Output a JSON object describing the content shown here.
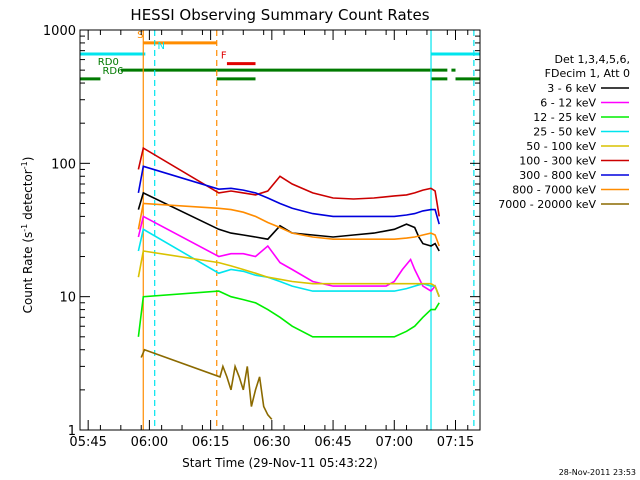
{
  "chart_data": {
    "type": "line",
    "title": "HESSI Observing Summary Count Rates",
    "xlabel": "Start Time (29-Nov-11 05:43:22)",
    "ylabel": "Count Rate (s",
    "ylabel_sup1": "-1",
    "ylabel_mid": " detector",
    "ylabel_sup2": "-1",
    "ylabel_end": ")",
    "yscale": "log",
    "ylim": [
      1,
      1000
    ],
    "y_ticks": [
      {
        "value": 1,
        "label": "1"
      },
      {
        "value": 10,
        "label": "10"
      },
      {
        "value": 100,
        "label": "100"
      },
      {
        "value": 1000,
        "label": "1000"
      }
    ],
    "xlim": [
      -2,
      96
    ],
    "x_ticks": [
      {
        "t": 0,
        "label": "05:45"
      },
      {
        "t": 15,
        "label": "06:00"
      },
      {
        "t": 30,
        "label": "06:15"
      },
      {
        "t": 45,
        "label": "06:30"
      },
      {
        "t": 60,
        "label": "06:45"
      },
      {
        "t": 75,
        "label": "07:00"
      },
      {
        "t": 90,
        "label": "07:15"
      }
    ],
    "legend_header": [
      "Det 1,3,4,5,6,",
      "FDecim 1, Att 0"
    ],
    "timestamp": "28-Nov-2011 23:53",
    "colors": {
      "axes": "#000000",
      "cyan": "#00e5ee",
      "orange": "#ff8c00",
      "red": "#e00000",
      "green": "#007a00"
    },
    "flags": [
      {
        "label": "S",
        "color": "#ff8c00",
        "level": 800,
        "segments": [
          [
            13.5,
            31.5
          ]
        ]
      },
      {
        "label": "N",
        "color": "#00e5ee",
        "level": 660,
        "segments": [
          [
            -2,
            14
          ],
          [
            84,
            96
          ]
        ]
      },
      {
        "label": "F",
        "color": "#e00000",
        "level": 560,
        "segments": [
          [
            34,
            41
          ]
        ]
      },
      {
        "label": "RD0",
        "color": "#007a00",
        "level": 500,
        "segments": [
          [
            8,
            88
          ],
          [
            89,
            90
          ]
        ]
      },
      {
        "label": "RD6",
        "color": "#007a00",
        "level": 430,
        "segments": [
          [
            -2,
            3
          ],
          [
            31.5,
            41
          ],
          [
            84,
            88
          ],
          [
            90,
            96
          ]
        ]
      }
    ],
    "vertical_lines": [
      {
        "t": 13.5,
        "color": "#ff8c00",
        "dash": false
      },
      {
        "t": 16.3,
        "color": "#00e5ee",
        "dash": true
      },
      {
        "t": 31.5,
        "color": "#ff8c00",
        "dash": true
      },
      {
        "t": 84,
        "color": "#00e5ee",
        "dash": false
      },
      {
        "t": 94.5,
        "color": "#00e5ee",
        "dash": true
      }
    ],
    "series": [
      {
        "name": "3 - 6 keV",
        "color": "#000000",
        "x": [
          12.3,
          13.5,
          32,
          35,
          38,
          41,
          44,
          47,
          50,
          55,
          60,
          65,
          70,
          75,
          78,
          80,
          81,
          82,
          84,
          85,
          86
        ],
        "y": [
          45,
          60,
          32,
          30,
          29,
          28,
          27,
          34,
          30,
          29,
          28,
          29,
          30,
          32,
          35,
          33,
          28,
          25,
          24,
          25,
          22
        ]
      },
      {
        "name": "6 - 12 keV",
        "color": "#ff00ff",
        "x": [
          12.3,
          13.5,
          32,
          35,
          38,
          41,
          44,
          47,
          50,
          55,
          60,
          65,
          70,
          73,
          75,
          77,
          79,
          80,
          82,
          84,
          85,
          86
        ],
        "y": [
          28,
          40,
          20,
          21,
          21,
          20,
          24,
          18,
          16,
          13,
          12,
          12,
          12,
          12,
          13,
          16,
          19,
          16,
          12,
          11,
          12,
          10
        ]
      },
      {
        "name": "12 - 25 keV",
        "color": "#00ee00",
        "x": [
          12.3,
          13.5,
          32,
          35,
          38,
          41,
          44,
          47,
          50,
          55,
          60,
          65,
          70,
          75,
          78,
          80,
          82,
          84,
          85,
          86
        ],
        "y": [
          5,
          10,
          11,
          10,
          9.5,
          9,
          8,
          7,
          6,
          5,
          5,
          5,
          5,
          5,
          5.5,
          6,
          7,
          8,
          8,
          9
        ]
      },
      {
        "name": "25 - 50 keV",
        "color": "#00e5ee",
        "x": [
          12.3,
          13.5,
          32,
          35,
          38,
          41,
          44,
          47,
          50,
          55,
          60,
          65,
          70,
          75,
          78,
          80,
          82,
          84,
          85,
          86
        ],
        "y": [
          22,
          32,
          15,
          16,
          15.5,
          14.5,
          14,
          13,
          12,
          11,
          11,
          11,
          11,
          11,
          11.5,
          12,
          12.5,
          12,
          12,
          10
        ]
      },
      {
        "name": "50 - 100 keV",
        "color": "#d9c200",
        "x": [
          12.3,
          13.5,
          32,
          35,
          38,
          41,
          44,
          47,
          50,
          55,
          60,
          65,
          70,
          75,
          78,
          80,
          82,
          84,
          85,
          86
        ],
        "y": [
          14,
          22,
          18,
          17,
          16,
          15,
          14,
          13.5,
          13,
          12.5,
          12.5,
          12.5,
          12.5,
          12.5,
          12.5,
          12.5,
          12.5,
          12.5,
          12,
          10
        ]
      },
      {
        "name": "100 - 300 keV",
        "color": "#cc0000",
        "x": [
          12.3,
          13.5,
          32,
          35,
          38,
          41,
          44,
          47,
          50,
          55,
          60,
          65,
          70,
          75,
          78,
          80,
          82,
          84,
          85,
          86
        ],
        "y": [
          90,
          130,
          60,
          62,
          60,
          58,
          62,
          80,
          70,
          60,
          55,
          54,
          55,
          57,
          58,
          60,
          63,
          65,
          62,
          40
        ]
      },
      {
        "name": "300 - 800 keV",
        "color": "#0000dd",
        "x": [
          12.3,
          13.5,
          32,
          35,
          38,
          41,
          44,
          47,
          50,
          55,
          60,
          65,
          70,
          75,
          78,
          80,
          82,
          84,
          85,
          86
        ],
        "y": [
          60,
          95,
          64,
          65,
          63,
          60,
          55,
          50,
          46,
          42,
          40,
          40,
          40,
          40,
          41,
          42,
          44,
          45,
          45,
          35
        ]
      },
      {
        "name": "800 - 7000 keV",
        "color": "#ff8c00",
        "x": [
          12.3,
          13.5,
          32,
          35,
          38,
          41,
          44,
          47,
          50,
          55,
          60,
          65,
          70,
          75,
          78,
          80,
          82,
          84,
          85,
          86
        ],
        "y": [
          32,
          50,
          46,
          45,
          43,
          40,
          36,
          33,
          30,
          28,
          27,
          27,
          27,
          27,
          27.5,
          28,
          29,
          30,
          29,
          24
        ]
      },
      {
        "name": "7000 - 20000 keV",
        "color": "#8b6a00",
        "x": [
          13,
          13.8,
          32.3,
          33,
          34,
          35,
          36,
          37,
          38,
          39,
          40,
          41,
          42,
          43,
          44,
          45
        ],
        "y": [
          3.5,
          4,
          2.5,
          3,
          2.5,
          2,
          3,
          2.5,
          2,
          3,
          1.5,
          2,
          2.5,
          1.5,
          1.3,
          1.2
        ]
      }
    ]
  }
}
